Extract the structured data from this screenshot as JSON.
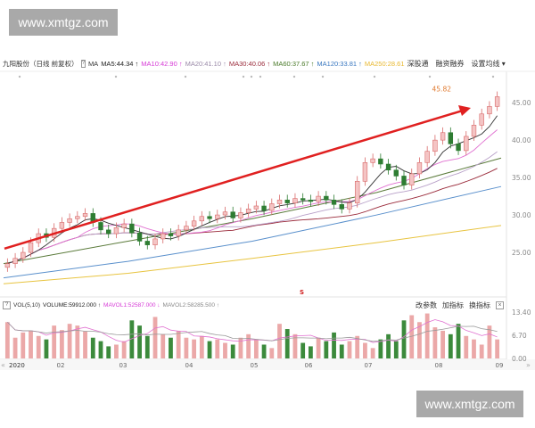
{
  "watermark": "www.xmtgz.com",
  "header": {
    "title": "九阳股份（日线 前复权）",
    "help": "?",
    "ma_label": "MA",
    "ma": [
      {
        "label": "MA5:44.34",
        "color": "#222222",
        "arrow": "↑"
      },
      {
        "label": "MA10:42.90",
        "color": "#d63ad6",
        "arrow": "↑"
      },
      {
        "label": "MA20:41.10",
        "color": "#9a8aa8",
        "arrow": "↑"
      },
      {
        "label": "MA30:40.06",
        "color": "#9a2a3a",
        "arrow": "↑"
      },
      {
        "label": "MA60:37.67",
        "color": "#4a7a2a",
        "arrow": "↑"
      },
      {
        "label": "MA120:33.81",
        "color": "#3a78c0",
        "arrow": "↑"
      },
      {
        "label": "MA250:28.61",
        "color": "#e8b830",
        "arrow": ""
      }
    ],
    "links": [
      "深股通",
      "融资融券",
      "设置均线 ▾"
    ]
  },
  "volume_header": {
    "help": "?",
    "name": "VOL(5,10)",
    "items": [
      {
        "label": "VOLUME:59912.000",
        "color": "#222222",
        "arrow": "↑"
      },
      {
        "label": "MAVOL1:52587.000",
        "color": "#d63ad6",
        "arrow": "↓"
      },
      {
        "label": "MAVOL2:58285.500",
        "color": "#888888",
        "arrow": "↑"
      }
    ],
    "buttons": [
      "改参数",
      "加指标",
      "换指标",
      "×"
    ]
  },
  "chart_data": {
    "type": "candlestick",
    "price_ylim": [
      20,
      48
    ],
    "price_ticks": [
      "45.00",
      "40.00",
      "35.00",
      "30.00",
      "25.00"
    ],
    "x_ticks": [
      "2020",
      "02",
      "03",
      "04",
      "05",
      "06",
      "07",
      "08",
      "09"
    ],
    "closes": [
      23.5,
      24.2,
      25.0,
      26.3,
      27.5,
      27.0,
      28.2,
      29.0,
      29.5,
      29.8,
      30.2,
      29.0,
      28.0,
      27.5,
      28.3,
      28.8,
      27.6,
      26.5,
      26.0,
      26.8,
      27.5,
      27.2,
      28.0,
      28.5,
      29.2,
      29.8,
      29.5,
      30.0,
      30.4,
      29.6,
      30.3,
      30.8,
      31.2,
      30.6,
      31.5,
      32.0,
      31.6,
      32.2,
      32.0,
      31.8,
      32.5,
      32.0,
      31.4,
      30.8,
      31.6,
      34.5,
      37.0,
      37.5,
      36.8,
      36.0,
      35.2,
      34.0,
      35.5,
      37.0,
      38.5,
      40.0,
      41.0,
      39.5,
      38.6,
      40.5,
      42.0,
      43.5,
      44.5,
      45.8
    ],
    "ma60": [
      23.5,
      26.5,
      29.5,
      33.0,
      37.6
    ],
    "ma120": [
      21.6,
      23.8,
      26.5,
      30.0,
      33.8
    ],
    "ma250": [
      20.8,
      22.2,
      24.2,
      26.3,
      28.6
    ],
    "high_annotation": "45.82",
    "signal_marker": "S",
    "volume_ylim": [
      0,
      13.4
    ],
    "volume_ticks": [
      "13.40",
      "6.70",
      "0.00"
    ],
    "volumes": [
      10.5,
      6.0,
      7.5,
      8.0,
      6.5,
      5.5,
      9.5,
      8.2,
      10.0,
      9.5,
      7.8,
      6.0,
      5.0,
      3.5,
      4.0,
      5.0,
      11.0,
      9.5,
      6.5,
      12.0,
      7.0,
      6.0,
      8.0,
      6.0,
      5.5,
      6.5,
      5.0,
      5.5,
      4.5,
      4.0,
      6.0,
      7.0,
      5.5,
      4.0,
      3.0,
      10.0,
      8.5,
      7.0,
      4.5,
      3.5,
      6.0,
      5.0,
      7.5,
      4.0,
      5.0,
      6.5,
      4.5,
      3.0,
      5.5,
      7.0,
      5.0,
      11.0,
      12.5,
      10.5,
      13.0,
      9.0,
      8.0,
      7.0,
      10.0,
      6.5,
      5.5,
      4.0,
      9.5,
      5.5
    ],
    "trend_arrow": {
      "from_price": 25.5,
      "to_price": 44.3,
      "color": "#e02020"
    }
  }
}
